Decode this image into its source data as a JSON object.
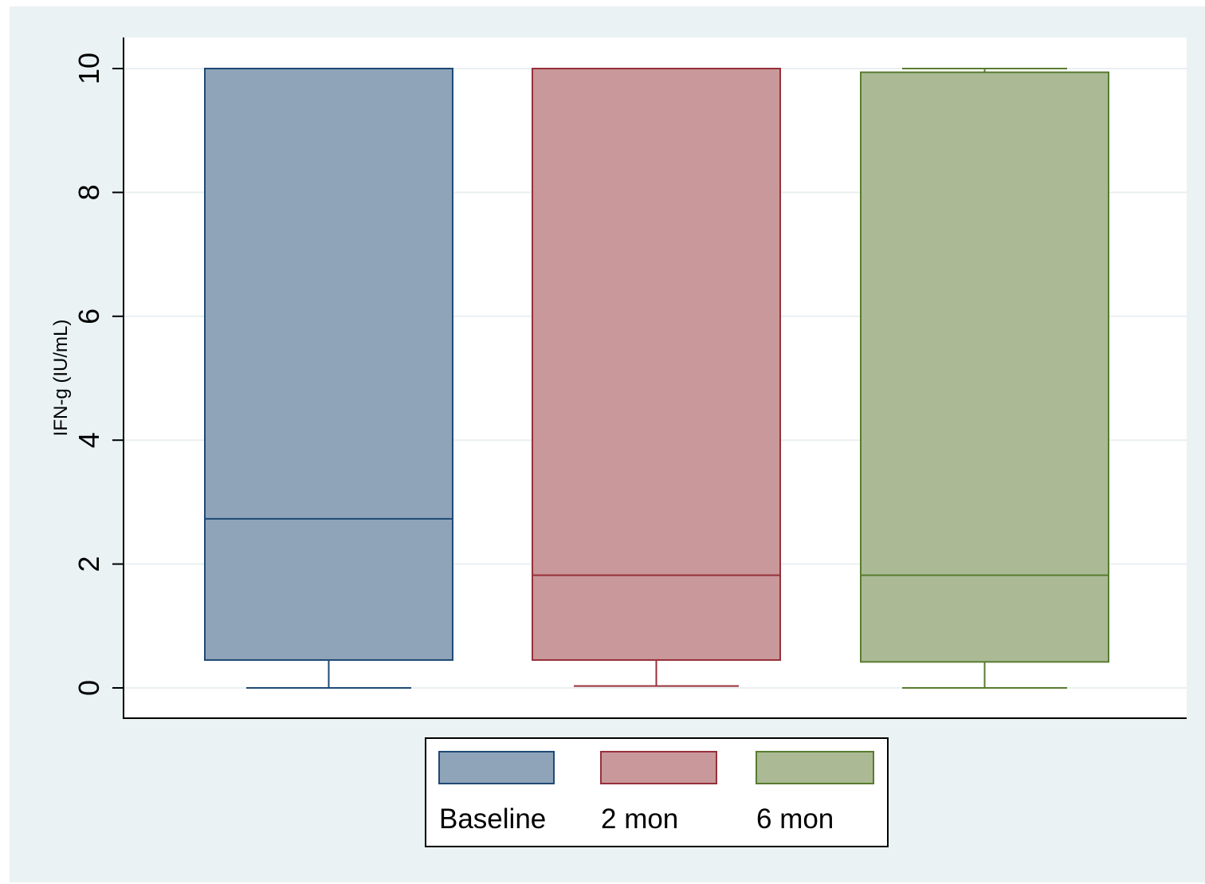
{
  "chart_data": {
    "type": "boxplot",
    "ylabel": "IFN-g (IU/mL)",
    "xlabel": "",
    "ylim": [
      0,
      10
    ],
    "yticks": [
      0,
      2,
      4,
      6,
      8,
      10
    ],
    "grid": true,
    "legend_position": "bottom",
    "series": [
      {
        "name": "Baseline",
        "whisker_low": 0.0,
        "q1": 0.45,
        "median": 2.73,
        "q3": 10.0,
        "whisker_high": 10.0,
        "fill": "#8fa4b9",
        "stroke": "#1f4a75"
      },
      {
        "name": "2 mon",
        "whisker_low": 0.03,
        "q1": 0.45,
        "median": 1.82,
        "q3": 10.0,
        "whisker_high": 10.0,
        "fill": "#c8989a",
        "stroke": "#97303a"
      },
      {
        "name": "6 mon",
        "whisker_low": 0.0,
        "q1": 0.42,
        "median": 1.82,
        "q3": 9.94,
        "whisker_high": 10.0,
        "fill": "#abba95",
        "stroke": "#587c2f"
      }
    ]
  }
}
